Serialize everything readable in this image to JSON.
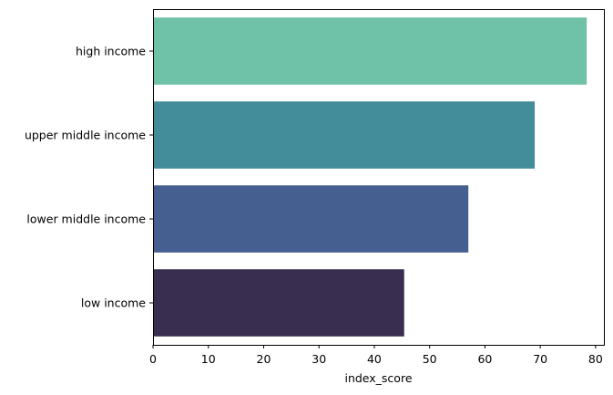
{
  "chart_data": {
    "type": "bar",
    "orientation": "horizontal",
    "categories": [
      "high income",
      "upper middle income",
      "lower middle income",
      "low income"
    ],
    "values": [
      78.4,
      69.0,
      57.0,
      45.4
    ],
    "colors": [
      "#6fc2a7",
      "#428d99",
      "#455f90",
      "#3a2e50"
    ],
    "xlabel": "index_score",
    "ylabel": "",
    "xlim": [
      0,
      81.5
    ],
    "xticks": [
      0,
      10,
      20,
      30,
      40,
      50,
      60,
      70,
      80
    ],
    "grid": false,
    "legend": "none"
  }
}
